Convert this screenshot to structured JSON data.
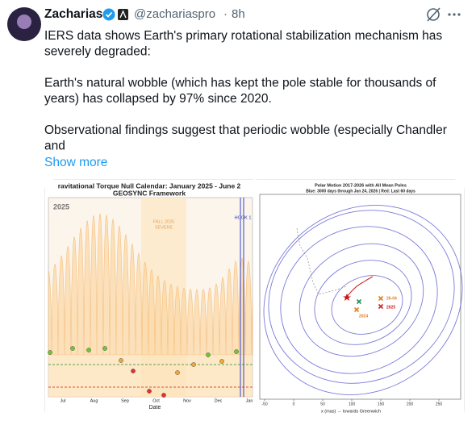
{
  "author": {
    "name": "Zacharias",
    "handle": "@zachariaspro",
    "separator": "·",
    "time": "8h"
  },
  "tweet": {
    "paragraphs": [
      [
        "IERS data shows Earth's primary rotational stabilization mechanism has",
        "severely degraded:"
      ],
      [
        "Earth's natural wobble (which has kept the pole stable for thousands of",
        "years) has collapsed by 97% since 2020."
      ],
      [
        "Observational findings suggest that periodic wobble (especially Chandler",
        "and"
      ]
    ],
    "show_more": "Show more"
  },
  "media": {
    "left": {
      "title": "ravitational Torque Null Calendar: January 2025 - June 2",
      "subtitle": "GEOSYNC Framework",
      "year": "2025",
      "band_label": [
        "FALL 2025",
        "SEVERE"
      ],
      "marker": "HOOK 1",
      "months": [
        "Jul",
        "Aug",
        "Sep",
        "Oct",
        "Nov",
        "Dec",
        "Jan"
      ],
      "xlabel": "Date"
    },
    "right": {
      "title": "Polar Motion 2017-2026 with All Mean Poles",
      "subtitle": "Blue: 3000 days through Jan 24, 2026 | Red: Last 60 days",
      "xticks": [
        -50,
        0,
        50,
        100,
        150,
        200,
        250
      ],
      "xlabel": "x (mas) → towards Greenwich",
      "labels": [
        "26-04",
        "2025",
        "2024"
      ]
    }
  }
}
